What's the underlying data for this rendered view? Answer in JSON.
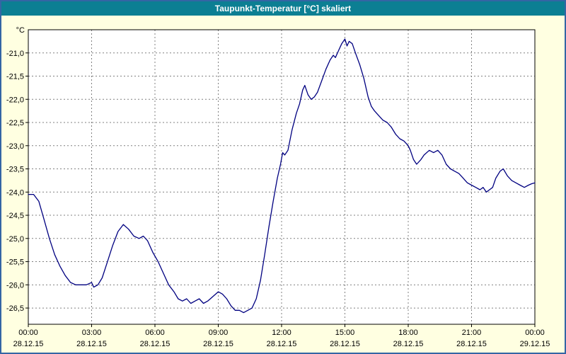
{
  "window": {
    "title": "Taupunkt-Temperatur [°C] skaliert"
  },
  "chart_data": {
    "type": "line",
    "title": "Taupunkt-Temperatur [°C] skaliert",
    "ylabel": "°C",
    "xlabel": "",
    "grid": true,
    "legend": "none",
    "ylim": [
      -26.85,
      -20.5
    ],
    "xlim": [
      0,
      24
    ],
    "colors": {
      "line": "#000080",
      "grid": "#808080",
      "plot_background": "#FFFFFF",
      "page_background": "#FFFFE1",
      "titlebar_background": "#0C7F93",
      "window_border": "#3465A4",
      "axis": "#000000"
    },
    "y_ticks": [
      -21.0,
      -21.5,
      -22.0,
      -22.5,
      -23.0,
      -23.5,
      -24.0,
      -24.5,
      -25.0,
      -25.5,
      -26.0,
      -26.5
    ],
    "y_tick_labels": [
      "-21,0",
      "-21,5",
      "-22,0",
      "-22,5",
      "-23,0",
      "-23,5",
      "-24,0",
      "-24,5",
      "-25,0",
      "-25,5",
      "-26,0",
      "-26,5"
    ],
    "x_ticks": [
      {
        "hour": 0,
        "time": "00:00",
        "date": "28.12.15"
      },
      {
        "hour": 3,
        "time": "03:00",
        "date": "28.12.15"
      },
      {
        "hour": 6,
        "time": "06:00",
        "date": "28.12.15"
      },
      {
        "hour": 9,
        "time": "09:00",
        "date": "28.12.15"
      },
      {
        "hour": 12,
        "time": "12:00",
        "date": "28.12.15"
      },
      {
        "hour": 15,
        "time": "15:00",
        "date": "28.12.15"
      },
      {
        "hour": 18,
        "time": "18:00",
        "date": "28.12.15"
      },
      {
        "hour": 21,
        "time": "21:00",
        "date": "28.12.15"
      },
      {
        "hour": 24,
        "time": "00:00",
        "date": "29.12.15"
      }
    ],
    "series": [
      {
        "name": "Taupunkt-Temperatur",
        "points": [
          [
            0.0,
            -24.05
          ],
          [
            0.25,
            -24.05
          ],
          [
            0.5,
            -24.2
          ],
          [
            0.75,
            -24.6
          ],
          [
            1.0,
            -25.0
          ],
          [
            1.25,
            -25.35
          ],
          [
            1.5,
            -25.6
          ],
          [
            1.75,
            -25.8
          ],
          [
            2.0,
            -25.95
          ],
          [
            2.25,
            -26.0
          ],
          [
            2.5,
            -26.0
          ],
          [
            2.75,
            -26.0
          ],
          [
            3.0,
            -25.95
          ],
          [
            3.1,
            -26.05
          ],
          [
            3.3,
            -26.0
          ],
          [
            3.5,
            -25.85
          ],
          [
            3.75,
            -25.5
          ],
          [
            4.0,
            -25.15
          ],
          [
            4.25,
            -24.85
          ],
          [
            4.5,
            -24.7
          ],
          [
            4.75,
            -24.8
          ],
          [
            5.0,
            -24.95
          ],
          [
            5.25,
            -25.0
          ],
          [
            5.45,
            -24.95
          ],
          [
            5.65,
            -25.05
          ],
          [
            5.9,
            -25.3
          ],
          [
            6.15,
            -25.5
          ],
          [
            6.4,
            -25.75
          ],
          [
            6.65,
            -26.0
          ],
          [
            6.9,
            -26.15
          ],
          [
            7.1,
            -26.3
          ],
          [
            7.3,
            -26.35
          ],
          [
            7.5,
            -26.3
          ],
          [
            7.7,
            -26.4
          ],
          [
            7.9,
            -26.35
          ],
          [
            8.1,
            -26.3
          ],
          [
            8.3,
            -26.4
          ],
          [
            8.5,
            -26.35
          ],
          [
            8.75,
            -26.25
          ],
          [
            9.0,
            -26.15
          ],
          [
            9.2,
            -26.2
          ],
          [
            9.4,
            -26.3
          ],
          [
            9.6,
            -26.45
          ],
          [
            9.8,
            -26.55
          ],
          [
            10.0,
            -26.55
          ],
          [
            10.2,
            -26.6
          ],
          [
            10.4,
            -26.55
          ],
          [
            10.6,
            -26.5
          ],
          [
            10.8,
            -26.3
          ],
          [
            11.0,
            -25.9
          ],
          [
            11.2,
            -25.35
          ],
          [
            11.4,
            -24.75
          ],
          [
            11.6,
            -24.2
          ],
          [
            11.8,
            -23.7
          ],
          [
            11.95,
            -23.4
          ],
          [
            12.05,
            -23.15
          ],
          [
            12.15,
            -23.2
          ],
          [
            12.3,
            -23.1
          ],
          [
            12.5,
            -22.65
          ],
          [
            12.7,
            -22.3
          ],
          [
            12.85,
            -22.1
          ],
          [
            13.0,
            -21.8
          ],
          [
            13.1,
            -21.7
          ],
          [
            13.25,
            -21.9
          ],
          [
            13.4,
            -22.0
          ],
          [
            13.55,
            -21.95
          ],
          [
            13.7,
            -21.85
          ],
          [
            13.9,
            -21.6
          ],
          [
            14.1,
            -21.35
          ],
          [
            14.3,
            -21.15
          ],
          [
            14.45,
            -21.05
          ],
          [
            14.55,
            -21.1
          ],
          [
            14.7,
            -20.95
          ],
          [
            14.85,
            -20.8
          ],
          [
            15.0,
            -20.7
          ],
          [
            15.1,
            -20.85
          ],
          [
            15.2,
            -20.75
          ],
          [
            15.35,
            -20.8
          ],
          [
            15.5,
            -21.0
          ],
          [
            15.7,
            -21.25
          ],
          [
            15.9,
            -21.55
          ],
          [
            16.1,
            -21.95
          ],
          [
            16.25,
            -22.15
          ],
          [
            16.4,
            -22.25
          ],
          [
            16.6,
            -22.35
          ],
          [
            16.8,
            -22.45
          ],
          [
            17.0,
            -22.5
          ],
          [
            17.2,
            -22.6
          ],
          [
            17.4,
            -22.75
          ],
          [
            17.6,
            -22.85
          ],
          [
            17.8,
            -22.9
          ],
          [
            18.0,
            -23.0
          ],
          [
            18.1,
            -23.1
          ],
          [
            18.25,
            -23.3
          ],
          [
            18.4,
            -23.4
          ],
          [
            18.6,
            -23.3
          ],
          [
            18.75,
            -23.2
          ],
          [
            19.0,
            -23.1
          ],
          [
            19.2,
            -23.15
          ],
          [
            19.4,
            -23.1
          ],
          [
            19.6,
            -23.2
          ],
          [
            19.8,
            -23.4
          ],
          [
            20.0,
            -23.5
          ],
          [
            20.2,
            -23.55
          ],
          [
            20.4,
            -23.6
          ],
          [
            20.6,
            -23.7
          ],
          [
            20.8,
            -23.8
          ],
          [
            21.0,
            -23.85
          ],
          [
            21.2,
            -23.9
          ],
          [
            21.4,
            -23.95
          ],
          [
            21.55,
            -23.9
          ],
          [
            21.7,
            -24.0
          ],
          [
            21.85,
            -23.95
          ],
          [
            22.0,
            -23.9
          ],
          [
            22.15,
            -23.7
          ],
          [
            22.35,
            -23.55
          ],
          [
            22.5,
            -23.5
          ],
          [
            22.7,
            -23.65
          ],
          [
            22.9,
            -23.75
          ],
          [
            23.1,
            -23.8
          ],
          [
            23.3,
            -23.85
          ],
          [
            23.5,
            -23.9
          ],
          [
            23.7,
            -23.85
          ],
          [
            23.85,
            -23.82
          ],
          [
            24.0,
            -23.8
          ]
        ]
      }
    ]
  }
}
